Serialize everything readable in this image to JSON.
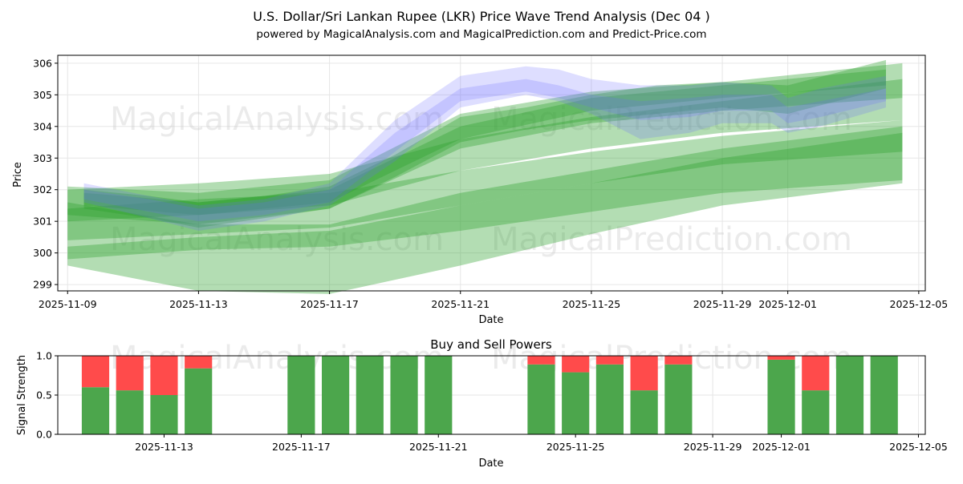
{
  "title": {
    "line1": "U.S. Dollar/Sri Lankan Rupee (LKR) Price Wave Trend Analysis (Dec 04 )",
    "line2": "powered by MagicalAnalysis.com and MagicalPrediction.com and Predict-Price.com"
  },
  "watermarks": [
    "MagicalAnalysis.com",
    "MagicalPrediction.com"
  ],
  "colors": {
    "green_band": "#2ca02c",
    "blue_band": "#6b6bff",
    "buy": "#4ca64c",
    "sell": "#ff4b4b",
    "grid": "#e6e6e6"
  },
  "chart_data": [
    {
      "type": "area",
      "name": "price-wave",
      "xlabel": "Date",
      "ylabel": "Price",
      "x_ticks": [
        "2025-11-09",
        "2025-11-13",
        "2025-11-17",
        "2025-11-21",
        "2025-11-25",
        "2025-11-29",
        "2025-12-01",
        "2025-12-05"
      ],
      "y_ticks": [
        299,
        300,
        301,
        302,
        303,
        304,
        305,
        306
      ],
      "xlim": [
        -0.3,
        26.2
      ],
      "ylim": [
        298.8,
        306.25
      ],
      "series": [
        {
          "name": "green-wave-1",
          "color": "green",
          "x": [
            0,
            4,
            8,
            12,
            16,
            20,
            25.5
          ],
          "upper": [
            301.6,
            300.9,
            300.9,
            301.9,
            302.6,
            303.3,
            304.0
          ],
          "lower": [
            299.6,
            298.8,
            298.7,
            299.6,
            300.6,
            301.5,
            302.2
          ]
        },
        {
          "name": "green-wave-2",
          "color": "green",
          "x": [
            0,
            4,
            8,
            12,
            16,
            20,
            25.5
          ],
          "upper": [
            300.2,
            300.5,
            300.7,
            301.5,
            302.2,
            303.0,
            303.8
          ],
          "lower": [
            299.8,
            300.1,
            300.2,
            300.7,
            301.3,
            301.9,
            302.3
          ]
        },
        {
          "name": "green-wave-3",
          "color": "green",
          "x": [
            0,
            4,
            8,
            12,
            16,
            20,
            25.5
          ],
          "upper": [
            301.4,
            301.7,
            301.9,
            302.6,
            303.2,
            303.7,
            304.2
          ],
          "lower": [
            300.4,
            300.6,
            300.8,
            301.5,
            302.2,
            302.8,
            303.2
          ]
        },
        {
          "name": "green-wave-4",
          "color": "green",
          "x": [
            0,
            4,
            8,
            12,
            16,
            20,
            25.5
          ],
          "upper": [
            302.0,
            302.2,
            302.5,
            303.6,
            304.3,
            304.8,
            305.5
          ],
          "lower": [
            301.0,
            301.2,
            301.5,
            302.6,
            303.3,
            303.8,
            304.2
          ]
        },
        {
          "name": "green-wave-5",
          "color": "green",
          "x": [
            0,
            4,
            8,
            12,
            16,
            20,
            25.5
          ],
          "upper": [
            302.1,
            301.9,
            302.3,
            304.4,
            305.1,
            305.4,
            306.0
          ],
          "lower": [
            301.2,
            300.9,
            301.4,
            303.3,
            304.1,
            304.5,
            304.9
          ]
        },
        {
          "name": "green-wave-6",
          "color": "green",
          "x": [
            0.5,
            2.5,
            4,
            6,
            8,
            10,
            12,
            14,
            16,
            18,
            20,
            22,
            25
          ],
          "upper": [
            302.0,
            301.8,
            301.6,
            301.8,
            302.1,
            303.1,
            304.3,
            304.6,
            305.0,
            305.3,
            305.4,
            305.3,
            306.1
          ],
          "lower": [
            301.4,
            301.1,
            300.8,
            301.1,
            301.4,
            302.4,
            303.5,
            303.9,
            304.2,
            304.4,
            304.6,
            304.4,
            305.2
          ]
        },
        {
          "name": "green-wave-7",
          "color": "green",
          "x": [
            0.5,
            4,
            8,
            12,
            16,
            20,
            25
          ],
          "upper": [
            301.9,
            301.6,
            302.0,
            304.0,
            304.9,
            305.3,
            305.8
          ],
          "lower": [
            301.5,
            301.2,
            301.6,
            303.6,
            304.5,
            304.9,
            305.3
          ]
        },
        {
          "name": "blue-wave-1",
          "color": "blue",
          "x": [
            0.5,
            2.5,
            4,
            6,
            8,
            10,
            12,
            14,
            15,
            16,
            17.5,
            19,
            20,
            21.5,
            22,
            23,
            25
          ],
          "upper": [
            302.2,
            301.8,
            301.5,
            301.7,
            302.2,
            304.2,
            305.6,
            305.9,
            305.8,
            305.5,
            305.3,
            305.3,
            305.4,
            305.3,
            304.9,
            305.2,
            305.6
          ],
          "lower": [
            301.6,
            301.1,
            300.7,
            301.0,
            301.5,
            302.9,
            304.6,
            305.0,
            304.8,
            304.4,
            303.6,
            303.8,
            304.1,
            304.1,
            303.8,
            304.0,
            304.6
          ]
        },
        {
          "name": "blue-wave-2",
          "color": "blue",
          "x": [
            0.5,
            2.5,
            4,
            6,
            8,
            10,
            12,
            14,
            15,
            16,
            17.5,
            19,
            20,
            21.5,
            22,
            23,
            25
          ],
          "upper": [
            302.0,
            301.7,
            301.4,
            301.6,
            302.0,
            303.8,
            305.2,
            305.5,
            305.3,
            305.0,
            304.8,
            304.9,
            305.0,
            305.0,
            304.6,
            304.8,
            305.2
          ],
          "lower": [
            301.7,
            301.3,
            301.0,
            301.2,
            301.6,
            303.2,
            304.8,
            305.1,
            304.9,
            304.6,
            304.2,
            304.3,
            304.5,
            304.5,
            304.1,
            304.3,
            304.8
          ]
        }
      ]
    },
    {
      "type": "bar",
      "name": "buy-sell-powers",
      "title": "Buy and Sell Powers",
      "xlabel": "Date",
      "ylabel": "Signal Strength",
      "x_ticks": [
        "2025-11-13",
        "2025-11-17",
        "2025-11-21",
        "2025-11-25",
        "2025-11-29",
        "2025-12-01",
        "2025-12-05"
      ],
      "y_ticks": [
        "0.0",
        "0.5",
        "1.0"
      ],
      "ylim": [
        0,
        1
      ],
      "bars": [
        {
          "date": "2025-11-11",
          "buy": 0.6,
          "sell": 0.4
        },
        {
          "date": "2025-11-12",
          "buy": 0.56,
          "sell": 0.44
        },
        {
          "date": "2025-11-13",
          "buy": 0.5,
          "sell": 0.5
        },
        {
          "date": "2025-11-14",
          "buy": 0.84,
          "sell": 0.16
        },
        {
          "date": "2025-11-17",
          "buy": 1.0,
          "sell": 0.0
        },
        {
          "date": "2025-11-18",
          "buy": 1.0,
          "sell": 0.0
        },
        {
          "date": "2025-11-19",
          "buy": 1.0,
          "sell": 0.0
        },
        {
          "date": "2025-11-20",
          "buy": 1.0,
          "sell": 0.0
        },
        {
          "date": "2025-11-21",
          "buy": 1.0,
          "sell": 0.0
        },
        {
          "date": "2025-11-24",
          "buy": 0.89,
          "sell": 0.11
        },
        {
          "date": "2025-11-25",
          "buy": 0.79,
          "sell": 0.21
        },
        {
          "date": "2025-11-26",
          "buy": 0.89,
          "sell": 0.11
        },
        {
          "date": "2025-11-27",
          "buy": 0.56,
          "sell": 0.44
        },
        {
          "date": "2025-11-28",
          "buy": 0.89,
          "sell": 0.11
        },
        {
          "date": "2025-12-01",
          "buy": 0.95,
          "sell": 0.05
        },
        {
          "date": "2025-12-02",
          "buy": 0.56,
          "sell": 0.44
        },
        {
          "date": "2025-12-03",
          "buy": 1.0,
          "sell": 0.0
        },
        {
          "date": "2025-12-04",
          "buy": 1.0,
          "sell": 0.0
        }
      ]
    }
  ]
}
